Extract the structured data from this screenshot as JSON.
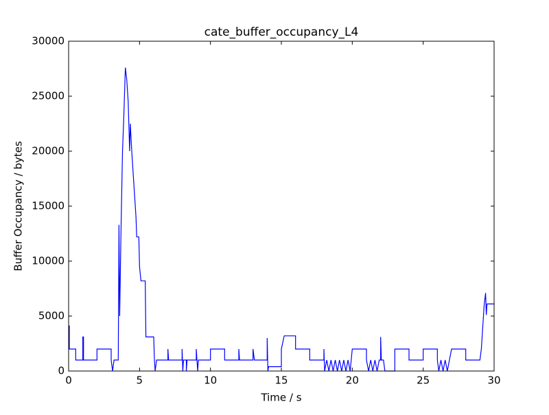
{
  "chart_data": {
    "type": "line",
    "title": "cate_buffer_occupancy_L4",
    "x_label": "Time / s",
    "y_label": "Buffer Occupancy / bytes",
    "xlim": [
      0,
      30
    ],
    "xticks": [
      0,
      5,
      10,
      15,
      20,
      25,
      30
    ],
    "ylim": [
      0,
      30000
    ],
    "yticks": [
      0,
      5000,
      10000,
      15000,
      20000,
      25000,
      30000
    ],
    "grid": false,
    "series": [
      {
        "color": "#0000ff",
        "x": [
          0,
          0.05,
          0.05,
          0.5,
          0.5,
          1.0,
          1.0,
          1.05,
          1.05,
          2.0,
          2.0,
          3.0,
          3.0,
          3.1,
          3.2,
          3.5,
          3.55,
          3.6,
          3.7,
          3.8,
          3.9,
          4.0,
          4.1,
          4.2,
          4.3,
          4.35,
          4.45,
          4.55,
          4.65,
          4.75,
          4.8,
          4.95,
          5.0,
          5.1,
          5.4,
          5.45,
          6.0,
          6.05,
          6.1,
          6.2,
          7.0,
          7.0,
          7.05,
          8.0,
          8.0,
          8.05,
          8.1,
          8.3,
          8.3,
          8.35,
          9.0,
          9.0,
          9.05,
          9.1,
          9.15,
          10.0,
          10.0,
          11.0,
          11.0,
          12.0,
          12.0,
          12.05,
          13.0,
          13.0,
          13.1,
          14.0,
          14.0,
          14.05,
          14.1,
          15.0,
          15.0,
          15.2,
          16.0,
          16.0,
          17.0,
          17.0,
          18.0,
          18.0,
          18.05,
          18.2,
          18.35,
          18.5,
          18.65,
          18.8,
          18.95,
          19.1,
          19.25,
          19.4,
          19.55,
          19.7,
          19.85,
          20.0,
          21.0,
          21.0,
          21.15,
          21.3,
          21.45,
          21.6,
          21.75,
          21.9,
          22.0,
          22.0,
          22.05,
          22.2,
          22.3,
          23.0,
          23.0,
          24.0,
          24.0,
          25.0,
          25.0,
          26.0,
          26.0,
          26.1,
          26.25,
          26.4,
          26.55,
          26.7,
          26.85,
          27.0,
          28.0,
          28.0,
          29.0,
          29.1,
          29.2,
          29.3,
          29.4,
          29.45,
          29.5,
          30.0
        ],
        "values": [
          4100,
          4100,
          2000,
          2000,
          1000,
          1000,
          3100,
          3100,
          1000,
          1000,
          2000,
          2000,
          1000,
          0,
          1000,
          1000,
          13300,
          5000,
          13300,
          20000,
          23500,
          27600,
          26500,
          24500,
          20000,
          22500,
          20000,
          18000,
          16000,
          14000,
          12200,
          12200,
          9500,
          8200,
          8200,
          3100,
          3100,
          1000,
          0,
          1000,
          1000,
          2000,
          1000,
          1000,
          2000,
          0,
          1000,
          1000,
          0,
          1000,
          1000,
          2000,
          1000,
          0,
          1000,
          1000,
          2000,
          2000,
          1000,
          1000,
          2000,
          1000,
          1000,
          2000,
          1000,
          1000,
          3000,
          0,
          400,
          400,
          2000,
          3200,
          3200,
          2000,
          2000,
          1000,
          1000,
          2000,
          0,
          1000,
          0,
          1000,
          0,
          1000,
          0,
          1000,
          0,
          1000,
          0,
          1000,
          0,
          2000,
          2000,
          1000,
          0,
          1000,
          0,
          1000,
          0,
          1000,
          1000,
          3100,
          1000,
          1000,
          0,
          0,
          2000,
          2000,
          1000,
          1000,
          2000,
          2000,
          1000,
          0,
          1000,
          0,
          1000,
          0,
          1000,
          2000,
          2000,
          1000,
          1000,
          2000,
          4000,
          6000,
          7100,
          5100,
          6100,
          6100
        ]
      }
    ]
  }
}
